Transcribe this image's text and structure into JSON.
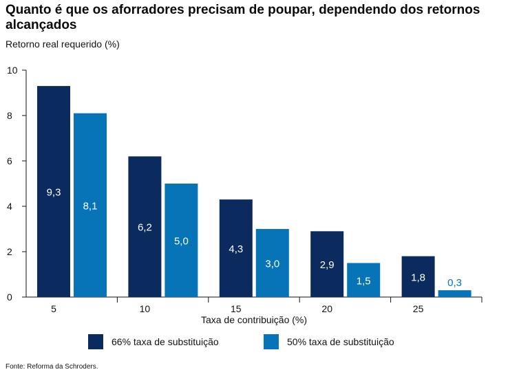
{
  "chart_data": {
    "type": "bar",
    "title": "Quanto é que os aforradores precisam de poupar, dependendo dos retornos alcançados",
    "ylabel": "Retorno real requerido (%)",
    "xlabel": "Taxa de contribuição (%)",
    "categories": [
      "5",
      "10",
      "15",
      "20",
      "25"
    ],
    "series": [
      {
        "name": "66% taxa de substituição",
        "values": [
          9.3,
          6.2,
          4.3,
          2.9,
          1.8
        ],
        "labels": [
          "9,3",
          "6,2",
          "4,3",
          "2,9",
          "1,8"
        ],
        "color": "#0b2a5e"
      },
      {
        "name": "50% taxa de substituição",
        "values": [
          8.1,
          5.0,
          3.0,
          1.5,
          0.3
        ],
        "labels": [
          "8,1",
          "5,0",
          "3,0",
          "1,5",
          "0,3"
        ],
        "color": "#0874b8"
      }
    ],
    "ylim": [
      0,
      10
    ],
    "yticks": [
      0,
      2,
      4,
      6,
      8,
      10
    ],
    "grid": false,
    "legend": "bottom"
  },
  "source": "Fonte: Reforma da Schroders."
}
